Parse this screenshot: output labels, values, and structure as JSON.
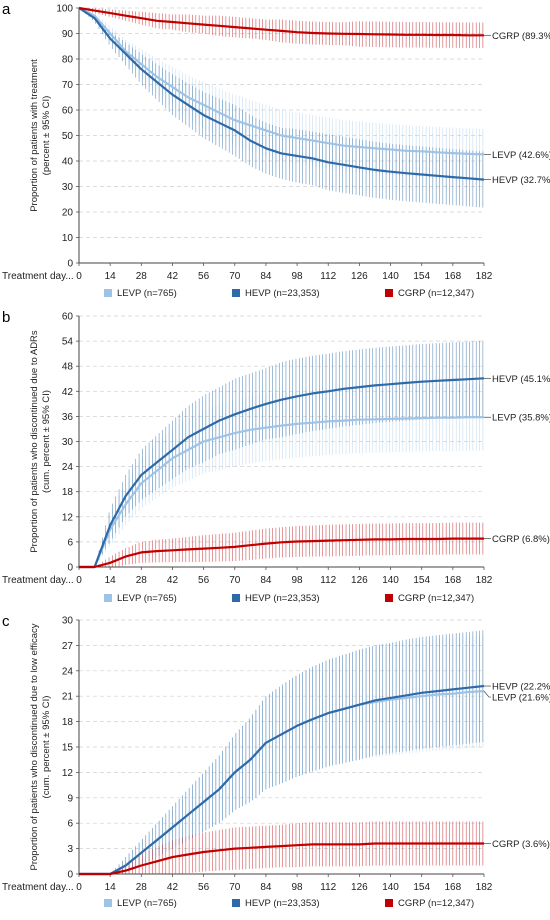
{
  "panels": [
    {
      "letter": "a",
      "ylabel_line1": "Proportion of patients with treatment",
      "ylabel_line2": "(percent ± 95% CI)",
      "xlabel": "Treatment day...",
      "ylim": [
        0,
        100
      ],
      "yticks": [
        0,
        10,
        20,
        30,
        40,
        50,
        60,
        70,
        80,
        90,
        100
      ],
      "xticks": [
        0,
        14,
        28,
        42,
        56,
        70,
        84,
        98,
        112,
        126,
        140,
        154,
        168,
        182
      ],
      "x": [
        0,
        7,
        14,
        21,
        28,
        35,
        42,
        49,
        56,
        63,
        70,
        77,
        84,
        91,
        98,
        105,
        112,
        119,
        126,
        133,
        140,
        147,
        154,
        161,
        168,
        175,
        182
      ],
      "series": [
        {
          "name": "LEVP (n=765)",
          "end_label": "LEVP (42.6%)",
          "color": "#9dc3e6",
          "color_ci": "#bdd7ee",
          "values": [
            100,
            97,
            90,
            83,
            78,
            73,
            69,
            65,
            62,
            59,
            56,
            54,
            52,
            50,
            49,
            48,
            47,
            46,
            45.5,
            45,
            44.5,
            44,
            43.8,
            43.4,
            43.1,
            42.8,
            42.6
          ],
          "ci": [
            0,
            1.5,
            3,
            4.5,
            6,
            7,
            8,
            8.5,
            9,
            9.5,
            10,
            10,
            10,
            10,
            10,
            10,
            10,
            10,
            10,
            10,
            10,
            10,
            10,
            10,
            10,
            10,
            10
          ]
        },
        {
          "name": "HEVP (n=23,353)",
          "end_label": "HEVP (32.7%)",
          "color": "#2e6aa8",
          "color_ci": "#4a7fb5",
          "values": [
            100,
            96,
            88,
            82,
            76,
            71,
            66,
            62,
            58,
            55,
            52,
            48,
            45,
            43,
            42,
            41,
            39.5,
            38.5,
            37.5,
            36.5,
            35.8,
            35.2,
            34.7,
            34.2,
            33.7,
            33.2,
            32.7
          ],
          "ci": [
            0,
            1.5,
            3,
            4.5,
            6,
            7,
            8,
            8.5,
            9,
            9.5,
            10,
            10,
            10,
            10,
            10.5,
            10.5,
            11,
            11,
            11,
            11,
            11,
            11,
            11,
            11,
            11,
            11,
            11
          ]
        },
        {
          "name": "CGRP (n=12,347)",
          "end_label": "CGRP (89.3%)",
          "color": "#c00000",
          "color_ci": "#c9363b",
          "values": [
            100,
            99,
            98,
            97,
            96,
            95,
            94.5,
            94,
            93.5,
            93,
            92.5,
            92,
            91.5,
            91,
            90.5,
            90.2,
            90,
            89.9,
            89.8,
            89.7,
            89.6,
            89.5,
            89.5,
            89.4,
            89.4,
            89.3,
            89.3
          ],
          "ci": [
            0,
            1,
            1.5,
            2,
            2.5,
            3,
            3,
            3.5,
            3.5,
            4,
            4,
            4,
            4,
            4.5,
            4.5,
            4.5,
            4.5,
            4.5,
            5,
            5,
            5,
            5,
            5,
            5,
            5,
            5,
            5
          ]
        }
      ]
    },
    {
      "letter": "b",
      "ylabel_line1": "Proportion of patients who discontinued due to ADRs",
      "ylabel_line2": "(cum. percent ± 95% CI)",
      "xlabel": "Treatment day...",
      "ylim": [
        0,
        60
      ],
      "yticks": [
        0,
        6,
        12,
        18,
        24,
        30,
        36,
        42,
        48,
        54,
        60
      ],
      "xticks": [
        0,
        14,
        28,
        42,
        56,
        70,
        84,
        98,
        112,
        126,
        140,
        154,
        168,
        182
      ],
      "x": [
        0,
        7,
        14,
        21,
        28,
        35,
        42,
        49,
        56,
        63,
        70,
        77,
        84,
        91,
        98,
        105,
        112,
        119,
        126,
        133,
        140,
        147,
        154,
        161,
        168,
        175,
        182
      ],
      "series": [
        {
          "name": "LEVP (n=765)",
          "end_label": "LEVP (35.8%)",
          "color": "#9dc3e6",
          "color_ci": "#bdd7ee",
          "values": [
            0,
            0,
            9,
            15,
            20,
            23,
            26,
            28,
            30,
            31,
            32,
            32.8,
            33.3,
            33.8,
            34.2,
            34.5,
            34.8,
            35,
            35.2,
            35.3,
            35.4,
            35.5,
            35.6,
            35.7,
            35.7,
            35.8,
            35.8
          ],
          "ci": [
            0,
            0,
            4,
            5,
            6,
            6.5,
            7,
            7.5,
            7.5,
            8,
            8,
            8,
            8,
            8,
            8,
            8,
            8,
            8,
            8,
            8,
            8,
            8,
            8,
            8,
            8,
            8,
            8
          ]
        },
        {
          "name": "HEVP (n=23,353)",
          "end_label": "HEVP (45.1%)",
          "color": "#2e6aa8",
          "color_ci": "#4a7fb5",
          "values": [
            0,
            0,
            10,
            17,
            22,
            25,
            28,
            31,
            33,
            35,
            36.5,
            37.8,
            39,
            40,
            40.8,
            41.5,
            42,
            42.6,
            43,
            43.4,
            43.7,
            44,
            44.3,
            44.5,
            44.7,
            44.9,
            45.1
          ],
          "ci": [
            0,
            0,
            4,
            5,
            6,
            6.5,
            7,
            7.5,
            8,
            8,
            8.5,
            8.5,
            8.5,
            9,
            9,
            9,
            9,
            9,
            9,
            9,
            9,
            9,
            9,
            9,
            9,
            9,
            9
          ]
        },
        {
          "name": "CGRP (n=12,347)",
          "end_label": "CGRP (6.8%)",
          "color": "#c00000",
          "color_ci": "#c9363b",
          "values": [
            0,
            0,
            1,
            2.5,
            3.5,
            3.8,
            4,
            4.2,
            4.4,
            4.6,
            4.8,
            5.2,
            5.6,
            5.9,
            6.1,
            6.2,
            6.3,
            6.4,
            6.5,
            6.6,
            6.6,
            6.7,
            6.7,
            6.7,
            6.8,
            6.8,
            6.8
          ],
          "ci": [
            0,
            0,
            1.5,
            2,
            2.5,
            2.7,
            2.8,
            3,
            3.2,
            3.3,
            3.4,
            3.5,
            3.6,
            3.6,
            3.7,
            3.7,
            3.8,
            3.8,
            3.8,
            3.8,
            3.8,
            3.8,
            3.8,
            3.8,
            3.8,
            3.8,
            3.8
          ]
        }
      ]
    },
    {
      "letter": "c",
      "ylabel_line1": "Proportion of patients who discontinued due to low efficacy",
      "ylabel_line2": "(cum. percent ± 95% CI)",
      "xlabel": "Treatment day...",
      "ylim": [
        0,
        30
      ],
      "yticks": [
        0,
        3,
        6,
        9,
        12,
        15,
        18,
        21,
        24,
        27,
        30
      ],
      "xticks": [
        0,
        14,
        28,
        42,
        56,
        70,
        84,
        98,
        112,
        126,
        140,
        154,
        168,
        182
      ],
      "x": [
        0,
        7,
        14,
        21,
        28,
        35,
        42,
        49,
        56,
        63,
        70,
        77,
        84,
        91,
        98,
        105,
        112,
        119,
        126,
        133,
        140,
        147,
        154,
        161,
        168,
        175,
        182
      ],
      "series": [
        {
          "name": "LEVP (n=765)",
          "end_label": "LEVP (21.6%)",
          "color": "#9dc3e6",
          "color_ci": "#bdd7ee",
          "values": [
            0,
            0,
            0,
            1,
            2.5,
            4,
            5.5,
            7,
            8.5,
            10,
            12,
            13.5,
            15.5,
            16.5,
            17.5,
            18.3,
            19,
            19.5,
            20,
            20.3,
            20.6,
            20.8,
            21,
            21.2,
            21.3,
            21.5,
            21.6
          ],
          "ci": [
            0,
            0,
            0,
            1,
            1.5,
            2,
            2.5,
            3,
            3.5,
            4,
            4.5,
            5,
            5.5,
            5.8,
            6,
            6.2,
            6.3,
            6.4,
            6.5,
            6.5,
            6.6,
            6.6,
            6.6,
            6.6,
            6.6,
            6.6,
            6.6
          ]
        },
        {
          "name": "HEVP (n=23,353)",
          "end_label": "HEVP (22.2%)",
          "color": "#2e6aa8",
          "color_ci": "#4a7fb5",
          "values": [
            0,
            0,
            0,
            1,
            2.5,
            4,
            5.5,
            7,
            8.5,
            10,
            12,
            13.5,
            15.5,
            16.5,
            17.5,
            18.3,
            19,
            19.5,
            20,
            20.5,
            20.8,
            21.1,
            21.4,
            21.6,
            21.8,
            22,
            22.2
          ],
          "ci": [
            0,
            0,
            0,
            1,
            1.5,
            2,
            2.5,
            3,
            3.5,
            4,
            4.5,
            5,
            5.5,
            5.8,
            6,
            6.2,
            6.3,
            6.4,
            6.5,
            6.5,
            6.5,
            6.6,
            6.6,
            6.6,
            6.6,
            6.6,
            6.6
          ]
        },
        {
          "name": "CGRP (n=12,347)",
          "end_label": "CGRP (3.6%)",
          "color": "#c00000",
          "color_ci": "#c9363b",
          "values": [
            0,
            0,
            0,
            0.4,
            1,
            1.5,
            2,
            2.3,
            2.6,
            2.8,
            3,
            3.1,
            3.2,
            3.3,
            3.4,
            3.5,
            3.5,
            3.5,
            3.5,
            3.6,
            3.6,
            3.6,
            3.6,
            3.6,
            3.6,
            3.6,
            3.6
          ],
          "ci": [
            0,
            0,
            0,
            0.8,
            1.3,
            1.7,
            2,
            2.2,
            2.3,
            2.4,
            2.5,
            2.5,
            2.5,
            2.5,
            2.6,
            2.6,
            2.6,
            2.6,
            2.6,
            2.6,
            2.6,
            2.6,
            2.6,
            2.6,
            2.6,
            2.6,
            2.6
          ]
        }
      ]
    }
  ],
  "chart_data": [
    {
      "type": "line",
      "panel": "a",
      "ylabel": "Proportion of patients with treatment (percent ± 95% CI)",
      "xlabel": "Treatment day...",
      "ylim": [
        0,
        100
      ],
      "xlim": [
        0,
        182
      ],
      "grid": "horizontal dashed",
      "legend": "bottom",
      "x": [
        0,
        7,
        14,
        21,
        28,
        35,
        42,
        49,
        56,
        63,
        70,
        77,
        84,
        91,
        98,
        105,
        112,
        119,
        126,
        133,
        140,
        147,
        154,
        161,
        168,
        175,
        182
      ],
      "series": [
        {
          "name": "LEVP (n=765)",
          "end_value": 42.6
        },
        {
          "name": "HEVP (n=23,353)",
          "end_value": 32.7
        },
        {
          "name": "CGRP (n=12,347)",
          "end_value": 89.3
        }
      ]
    },
    {
      "type": "line",
      "panel": "b",
      "ylabel": "Proportion of patients who discontinued due to ADRs (cum. percent ± 95% CI)",
      "xlabel": "Treatment day...",
      "ylim": [
        0,
        60
      ],
      "xlim": [
        0,
        182
      ],
      "grid": "horizontal dashed",
      "legend": "bottom",
      "series": [
        {
          "name": "LEVP (n=765)",
          "end_value": 35.8
        },
        {
          "name": "HEVP (n=23,353)",
          "end_value": 45.1
        },
        {
          "name": "CGRP (n=12,347)",
          "end_value": 6.8
        }
      ]
    },
    {
      "type": "line",
      "panel": "c",
      "ylabel": "Proportion of patients who discontinued due to low efficacy (cum. percent ± 95% CI)",
      "xlabel": "Treatment day...",
      "ylim": [
        0,
        30
      ],
      "xlim": [
        0,
        182
      ],
      "grid": "horizontal dashed",
      "legend": "bottom",
      "series": [
        {
          "name": "LEVP (n=765)",
          "end_value": 21.6
        },
        {
          "name": "HEVP (n=23,353)",
          "end_value": 22.2
        },
        {
          "name": "CGRP (n=12,347)",
          "end_value": 3.6
        }
      ]
    }
  ]
}
